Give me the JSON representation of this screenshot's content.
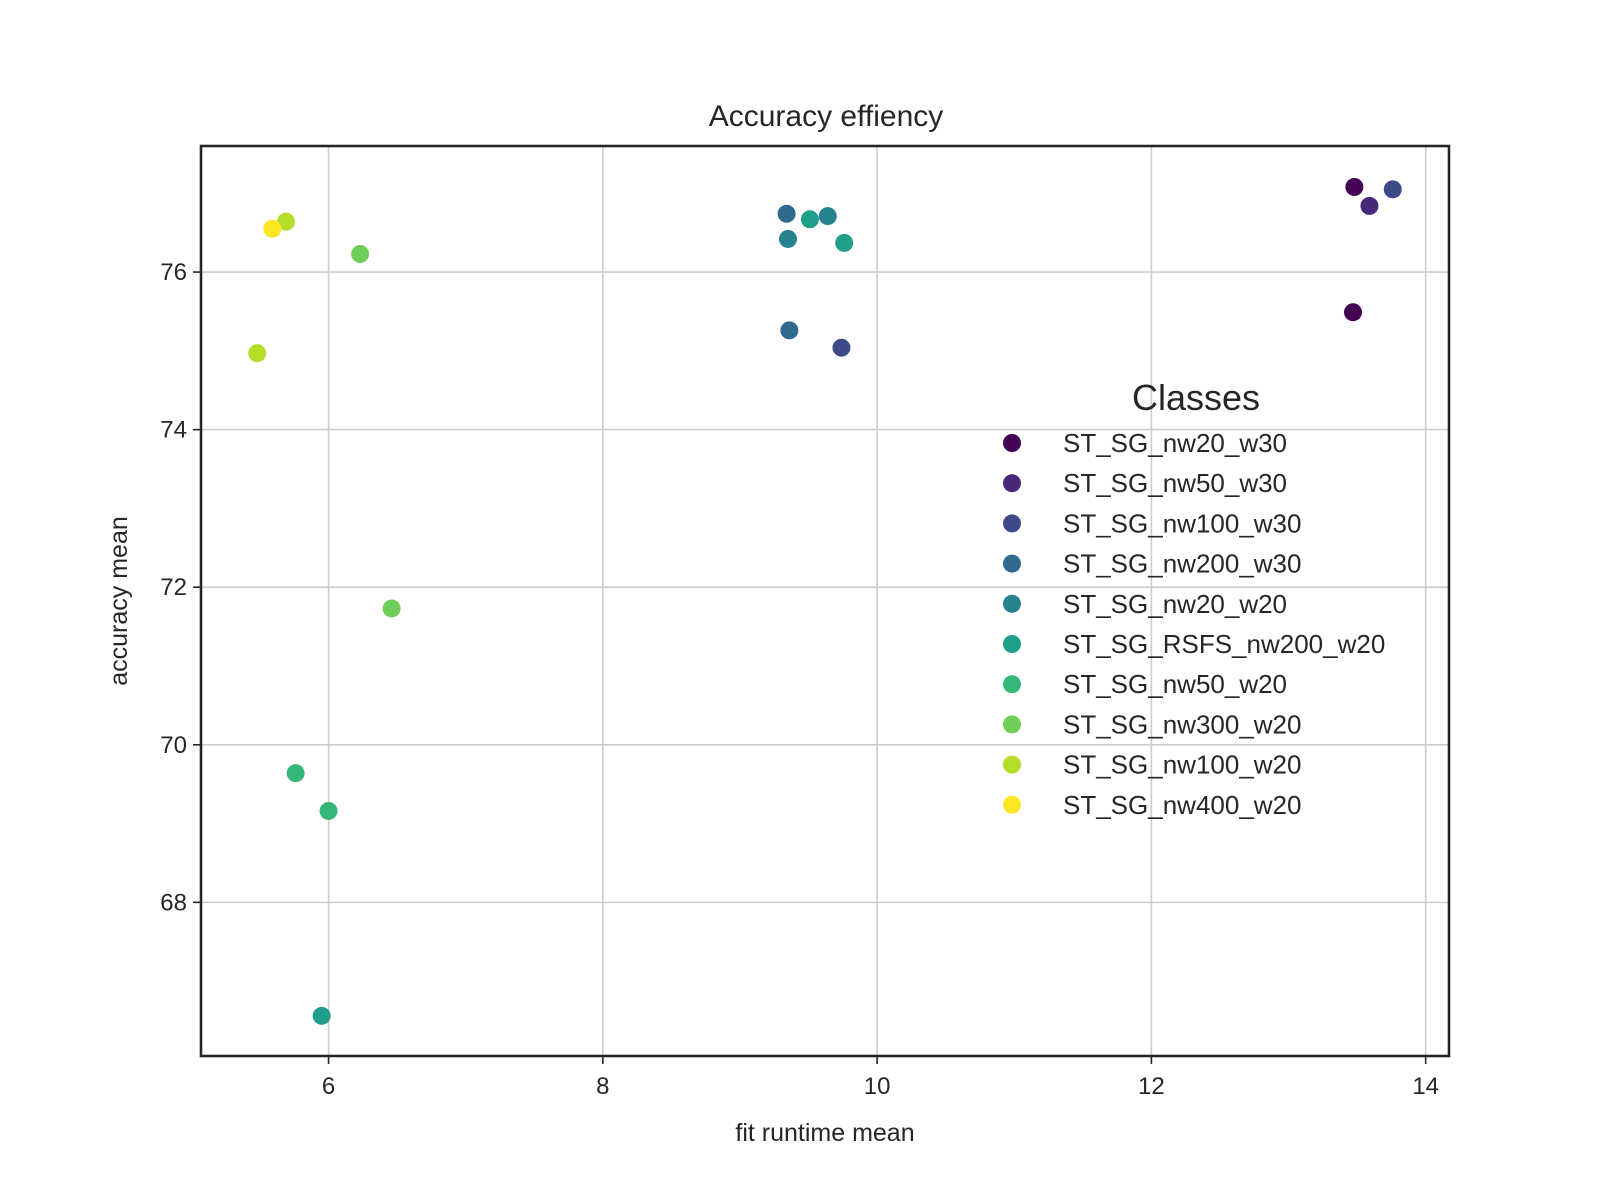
{
  "chart_data": {
    "type": "scatter",
    "title": "Accuracy effiency",
    "xlabel": "fit runtime mean",
    "ylabel": "accuracy mean",
    "xlim": [
      5.07,
      14.17
    ],
    "ylim": [
      66.05,
      77.6
    ],
    "xticks": [
      6,
      8,
      10,
      12,
      14
    ],
    "yticks": [
      68,
      70,
      72,
      74,
      76
    ],
    "grid": true,
    "legend": {
      "title": "Classes",
      "placement": "center-right"
    },
    "series": [
      {
        "name": "ST_SG_nw20_w30",
        "color": "#440154",
        "points": [
          [
            13.48,
            77.08
          ],
          [
            13.47,
            75.49
          ]
        ]
      },
      {
        "name": "ST_SG_nw50_w30",
        "color": "#482878",
        "points": [
          [
            13.59,
            76.84
          ]
        ]
      },
      {
        "name": "ST_SG_nw100_w30",
        "color": "#3e4989",
        "points": [
          [
            13.76,
            77.05
          ],
          [
            9.74,
            75.04
          ]
        ]
      },
      {
        "name": "ST_SG_nw200_w30",
        "color": "#31688e",
        "points": [
          [
            9.34,
            76.74
          ],
          [
            9.36,
            75.26
          ]
        ]
      },
      {
        "name": "ST_SG_nw20_w20",
        "color": "#26828e",
        "points": [
          [
            9.35,
            76.42
          ],
          [
            9.64,
            76.71
          ]
        ]
      },
      {
        "name": "ST_SG_RSFS_nw200_w20",
        "color": "#1f9e89",
        "points": [
          [
            9.51,
            76.67
          ],
          [
            9.76,
            76.37
          ],
          [
            5.95,
            66.56
          ]
        ]
      },
      {
        "name": "ST_SG_nw50_w20",
        "color": "#35b779",
        "points": [
          [
            5.76,
            69.64
          ],
          [
            6.0,
            69.16
          ]
        ]
      },
      {
        "name": "ST_SG_nw300_w20",
        "color": "#6ece58",
        "points": [
          [
            6.23,
            76.23
          ],
          [
            6.46,
            71.73
          ]
        ]
      },
      {
        "name": "ST_SG_nw100_w20",
        "color": "#b5de2b",
        "points": [
          [
            5.69,
            76.64
          ],
          [
            5.48,
            74.97
          ]
        ]
      },
      {
        "name": "ST_SG_nw400_w20",
        "color": "#fde725",
        "points": [
          [
            5.59,
            76.55
          ]
        ]
      }
    ]
  }
}
